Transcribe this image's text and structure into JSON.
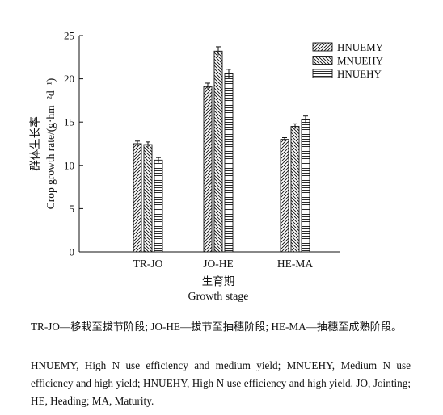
{
  "chart_data": {
    "type": "bar",
    "xlabel": "Growth stage",
    "xlabel_zh": "生育期",
    "ylabel": "Crop growth rate/(g·hm⁻²d⁻¹)",
    "ylabel_zh": "群体生长率",
    "ylim": [
      0,
      25
    ],
    "yticks": [
      0,
      5,
      10,
      15,
      20,
      25
    ],
    "grid": false,
    "legend_position": "top-right",
    "categories": [
      "TR-JO",
      "JO-HE",
      "HE-MA"
    ],
    "series": [
      {
        "name": "HNUEMY",
        "pattern": "diagonal-forward",
        "values": [
          12.5,
          19.1,
          13.0
        ],
        "errors": [
          0.3,
          0.4,
          0.2
        ]
      },
      {
        "name": "MNUEHY",
        "pattern": "diagonal-backward",
        "values": [
          12.4,
          23.2,
          14.5
        ],
        "errors": [
          0.3,
          0.5,
          0.3
        ]
      },
      {
        "name": "HNUEHY",
        "pattern": "horizontal",
        "values": [
          10.6,
          20.6,
          15.3
        ],
        "errors": [
          0.3,
          0.5,
          0.4
        ]
      }
    ]
  },
  "captions": {
    "zh": "TR-JO—移栽至拔节阶段; JO-HE—拔节至抽穗阶段; HE-MA—抽穗至成熟阶段。",
    "en": "HNUEMY, High N use efficiency and medium yield; MNUEHY, Medium N use efficiency and high yield; HNUEHY, High N use efficiency and high yield. JO, Jointing; HE, Heading; MA, Maturity."
  }
}
